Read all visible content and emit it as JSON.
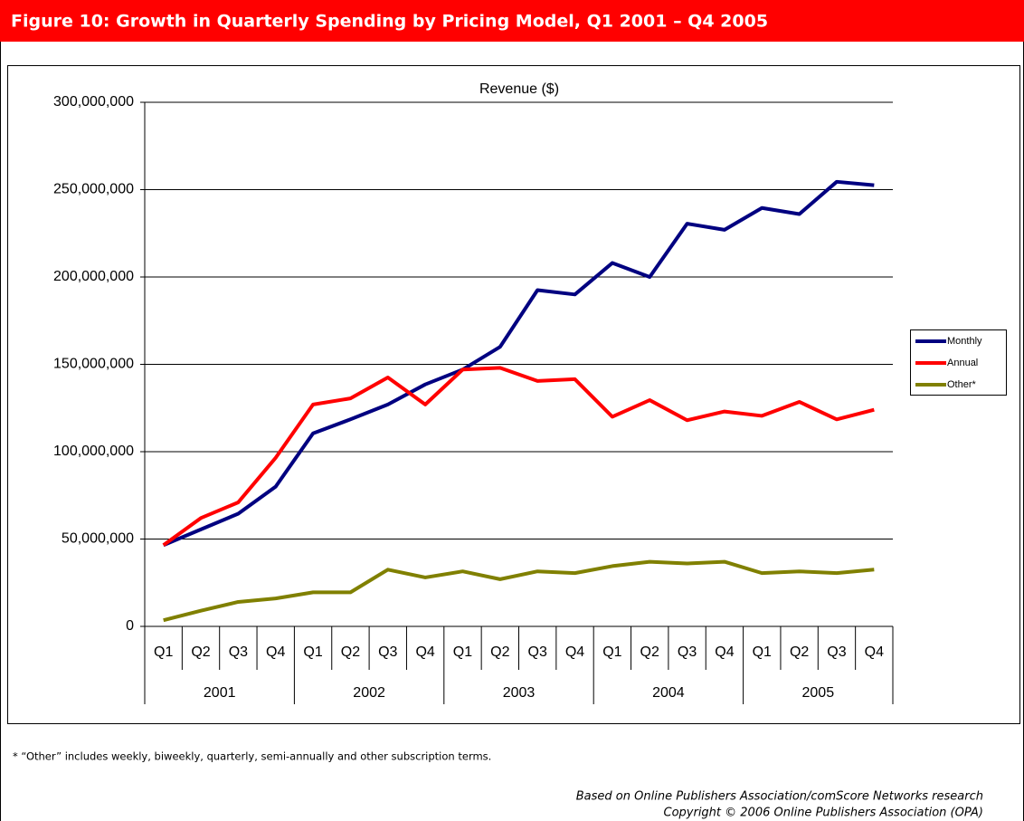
{
  "header": "Figure 10: Growth in Quarterly Spending by Pricing Model, Q1 2001 – Q4 2005",
  "chart_data": {
    "type": "line",
    "title": "Revenue ($)",
    "categories": [
      "Q1",
      "Q2",
      "Q3",
      "Q4",
      "Q1",
      "Q2",
      "Q3",
      "Q4",
      "Q1",
      "Q2",
      "Q3",
      "Q4",
      "Q1",
      "Q2",
      "Q3",
      "Q4",
      "Q1",
      "Q2",
      "Q3",
      "Q4"
    ],
    "category_groups": [
      "2001",
      "2002",
      "2003",
      "2004",
      "2005"
    ],
    "series": [
      {
        "name": "Monthly",
        "color": "#000080",
        "values": [
          46500000,
          55500000,
          64500000,
          80000000,
          110500000,
          118500000,
          127000000,
          138500000,
          147000000,
          160000000,
          192500000,
          190000000,
          208000000,
          200000000,
          230500000,
          227000000,
          239500000,
          236000000,
          254500000,
          252500000
        ]
      },
      {
        "name": "Annual",
        "color": "#ff0000",
        "values": [
          46500000,
          62000000,
          71000000,
          96500000,
          127000000,
          130500000,
          142500000,
          127000000,
          147000000,
          148000000,
          140500000,
          141500000,
          120000000,
          129500000,
          118000000,
          123000000,
          120500000,
          128500000,
          118500000,
          124000000
        ]
      },
      {
        "name": "Other*",
        "color": "#808000",
        "values": [
          3500000,
          9000000,
          14000000,
          16000000,
          19500000,
          19500000,
          32500000,
          28000000,
          31500000,
          27000000,
          31500000,
          30500000,
          34500000,
          37000000,
          36000000,
          37000000,
          30500000,
          31500000,
          30500000,
          32500000
        ]
      }
    ],
    "ylim": [
      0,
      300000000
    ],
    "yticks": [
      0,
      {
        "value": 50000000,
        "label": "50,000,000"
      },
      {
        "value": 100000000,
        "label": "100,000,000"
      },
      {
        "value": 150000000,
        "label": "150,000,000"
      },
      {
        "value": 200000000,
        "label": "200,000,000"
      },
      {
        "value": 250000000,
        "label": "250,000,000"
      },
      {
        "value": 300000000,
        "label": "300,000,000"
      }
    ],
    "grid": true,
    "legend": "right"
  },
  "footnote": "* “Other” includes weekly, biweekly, quarterly, semi-annually and other subscription terms.",
  "source": [
    "Based on Online Publishers Association/comScore Networks research",
    "Copyright © 2006 Online Publishers Association (OPA)"
  ]
}
